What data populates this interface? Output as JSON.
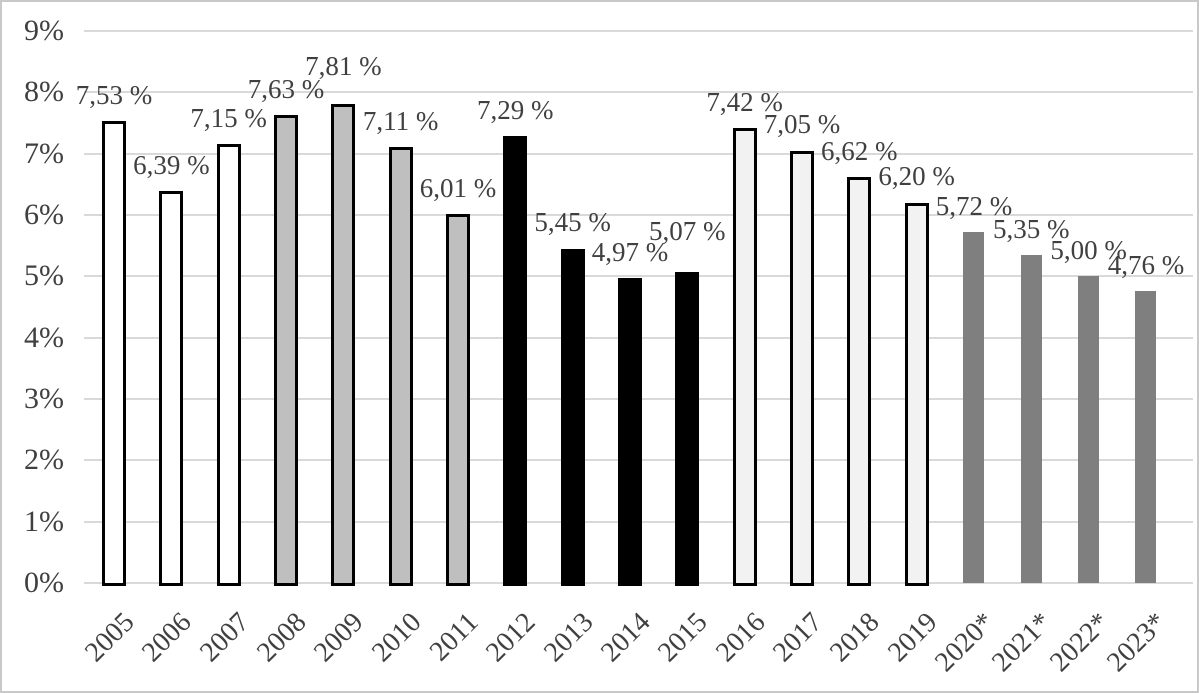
{
  "chart_data": {
    "type": "bar",
    "title": "",
    "xlabel": "",
    "ylabel": "",
    "categories": [
      "2005",
      "2006",
      "2007",
      "2008",
      "2009",
      "2010",
      "2011",
      "2012",
      "2013",
      "2014",
      "2015",
      "2016",
      "2017",
      "2018",
      "2019",
      "2020*",
      "2021*",
      "2022*",
      "2023*"
    ],
    "values": [
      7.53,
      6.39,
      7.15,
      7.63,
      7.81,
      7.11,
      6.01,
      7.29,
      5.45,
      4.97,
      5.07,
      7.42,
      7.05,
      6.62,
      6.2,
      5.72,
      5.35,
      5.0,
      4.76
    ],
    "value_labels": [
      "7,53 %",
      "6,39 %",
      "7,15 %",
      "7,63 %",
      "7,81 %",
      "7,11 %",
      "6,01 %",
      "7,29 %",
      "5,45 %",
      "4,97 %",
      "5,07 %",
      "7,42 %",
      "7,05 %",
      "6,62 %",
      "6,20 %",
      "5,72 %",
      "5,35 %",
      "5,00 %",
      "4,76 %"
    ],
    "y_tick_labels": [
      "0%",
      "1%",
      "2%",
      "3%",
      "4%",
      "5%",
      "6%",
      "7%",
      "8%",
      "9%"
    ],
    "ylim": [
      0,
      9
    ],
    "grid": true,
    "legend": false,
    "bar_styles": [
      {
        "from": 0,
        "to": 2,
        "fill": "#FFFFFF",
        "border": "#000000"
      },
      {
        "from": 3,
        "to": 6,
        "fill": "#BFBFBF",
        "border": "#000000"
      },
      {
        "from": 7,
        "to": 10,
        "fill": "#000000",
        "border": "#000000"
      },
      {
        "from": 11,
        "to": 14,
        "fill": "#F2F2F2",
        "border": "#000000"
      },
      {
        "from": 15,
        "to": 18,
        "fill": "#7F7F7F",
        "border": null
      }
    ],
    "colors": {
      "gridline": "#D9D9D9",
      "axis_text": "#404040",
      "data_label_text": "#404040",
      "frame_border": "#C9C9C9",
      "background": "#FFFFFF"
    }
  }
}
